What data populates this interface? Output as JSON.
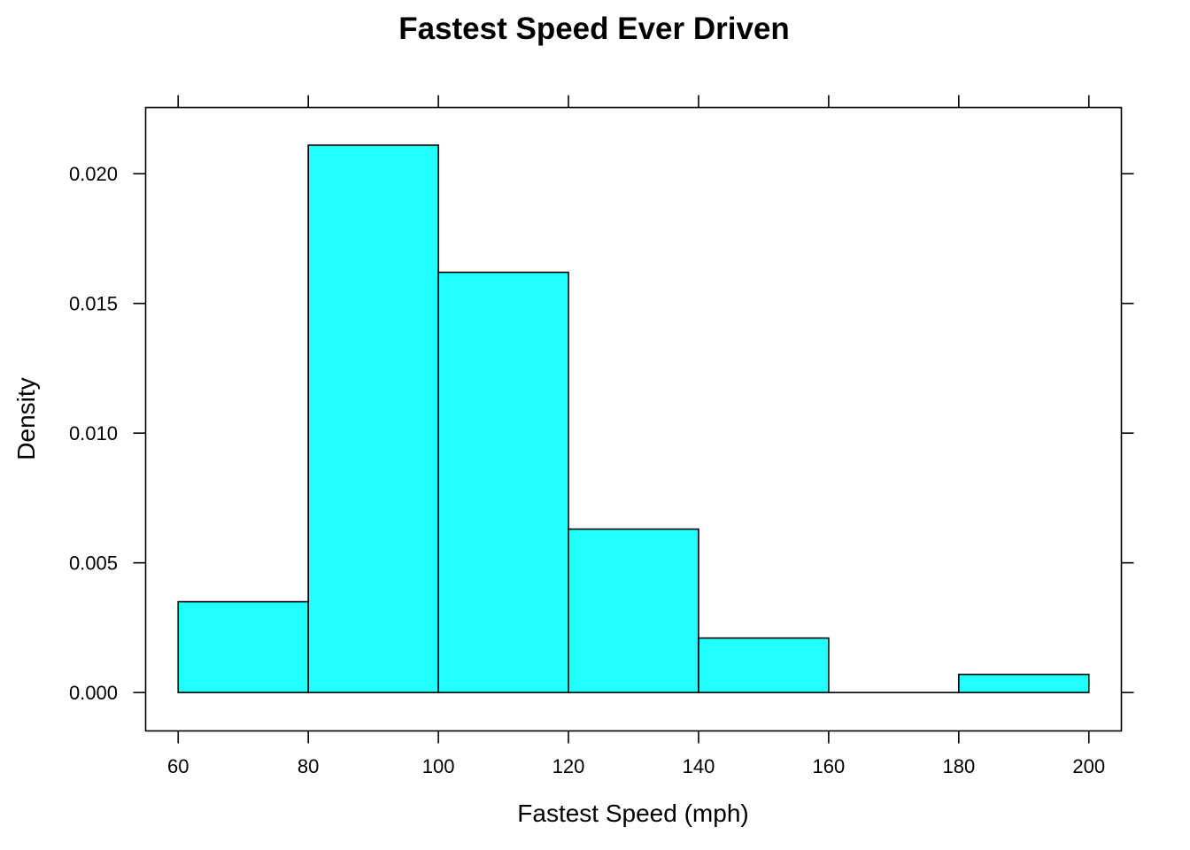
{
  "chart_data": {
    "type": "bar",
    "title": "Fastest Speed Ever Driven",
    "xlabel": "Fastest Speed (mph)",
    "ylabel": "Density",
    "bins": [
      {
        "from": 60,
        "to": 80,
        "density": 0.0035
      },
      {
        "from": 80,
        "to": 100,
        "density": 0.0211
      },
      {
        "from": 100,
        "to": 120,
        "density": 0.0162
      },
      {
        "from": 120,
        "to": 140,
        "density": 0.0063
      },
      {
        "from": 140,
        "to": 160,
        "density": 0.0021
      },
      {
        "from": 160,
        "to": 180,
        "density": 0.0
      },
      {
        "from": 180,
        "to": 200,
        "density": 0.0007
      }
    ],
    "xlim": [
      55,
      205
    ],
    "ylim": [
      -0.00148,
      0.02255
    ],
    "xticks": [
      {
        "value": 60,
        "label": "60"
      },
      {
        "value": 80,
        "label": "80"
      },
      {
        "value": 100,
        "label": "100"
      },
      {
        "value": 120,
        "label": "120"
      },
      {
        "value": 140,
        "label": "140"
      },
      {
        "value": 160,
        "label": "160"
      },
      {
        "value": 180,
        "label": "180"
      },
      {
        "value": 200,
        "label": "200"
      }
    ],
    "yticks": [
      {
        "value": 0,
        "label": "0.000"
      },
      {
        "value": 0.005,
        "label": "0.005"
      },
      {
        "value": 0.01,
        "label": "0.010"
      },
      {
        "value": 0.015,
        "label": "0.015"
      },
      {
        "value": 0.02,
        "label": "0.020"
      }
    ],
    "bar_color": "#22FFFF",
    "grid": false,
    "legend": "none"
  }
}
